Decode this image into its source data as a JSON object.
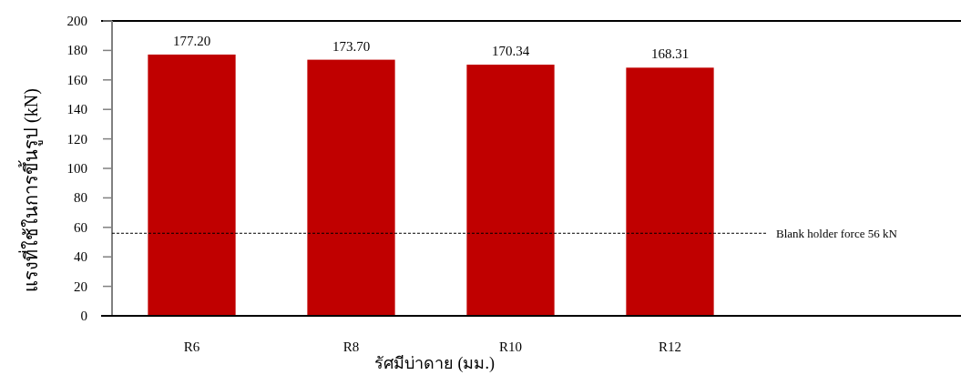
{
  "chart_data": {
    "type": "bar",
    "categories": [
      "R6",
      "R8",
      "R10",
      "R12"
    ],
    "series": [
      {
        "color": "#c00000",
        "values": [
          177.2,
          173.7,
          170.34,
          168.31
        ],
        "value_labels": [
          "177.20",
          "173.70",
          "170.34",
          "168.31"
        ]
      }
    ],
    "xlabel": "รัศมีบ่าดาย (มม.)",
    "ylabel": "แรงที่ใช้ในการขึ้นรูป (kN)",
    "ylim": [
      0,
      200
    ],
    "yticks": [
      0,
      20,
      40,
      60,
      80,
      100,
      120,
      140,
      160,
      180,
      200
    ],
    "ref_lines": [
      {
        "axis": "y",
        "value": 56,
        "label": "Blank holder force 56 kN",
        "color": "#000000",
        "line_style": "dashed"
      }
    ]
  }
}
